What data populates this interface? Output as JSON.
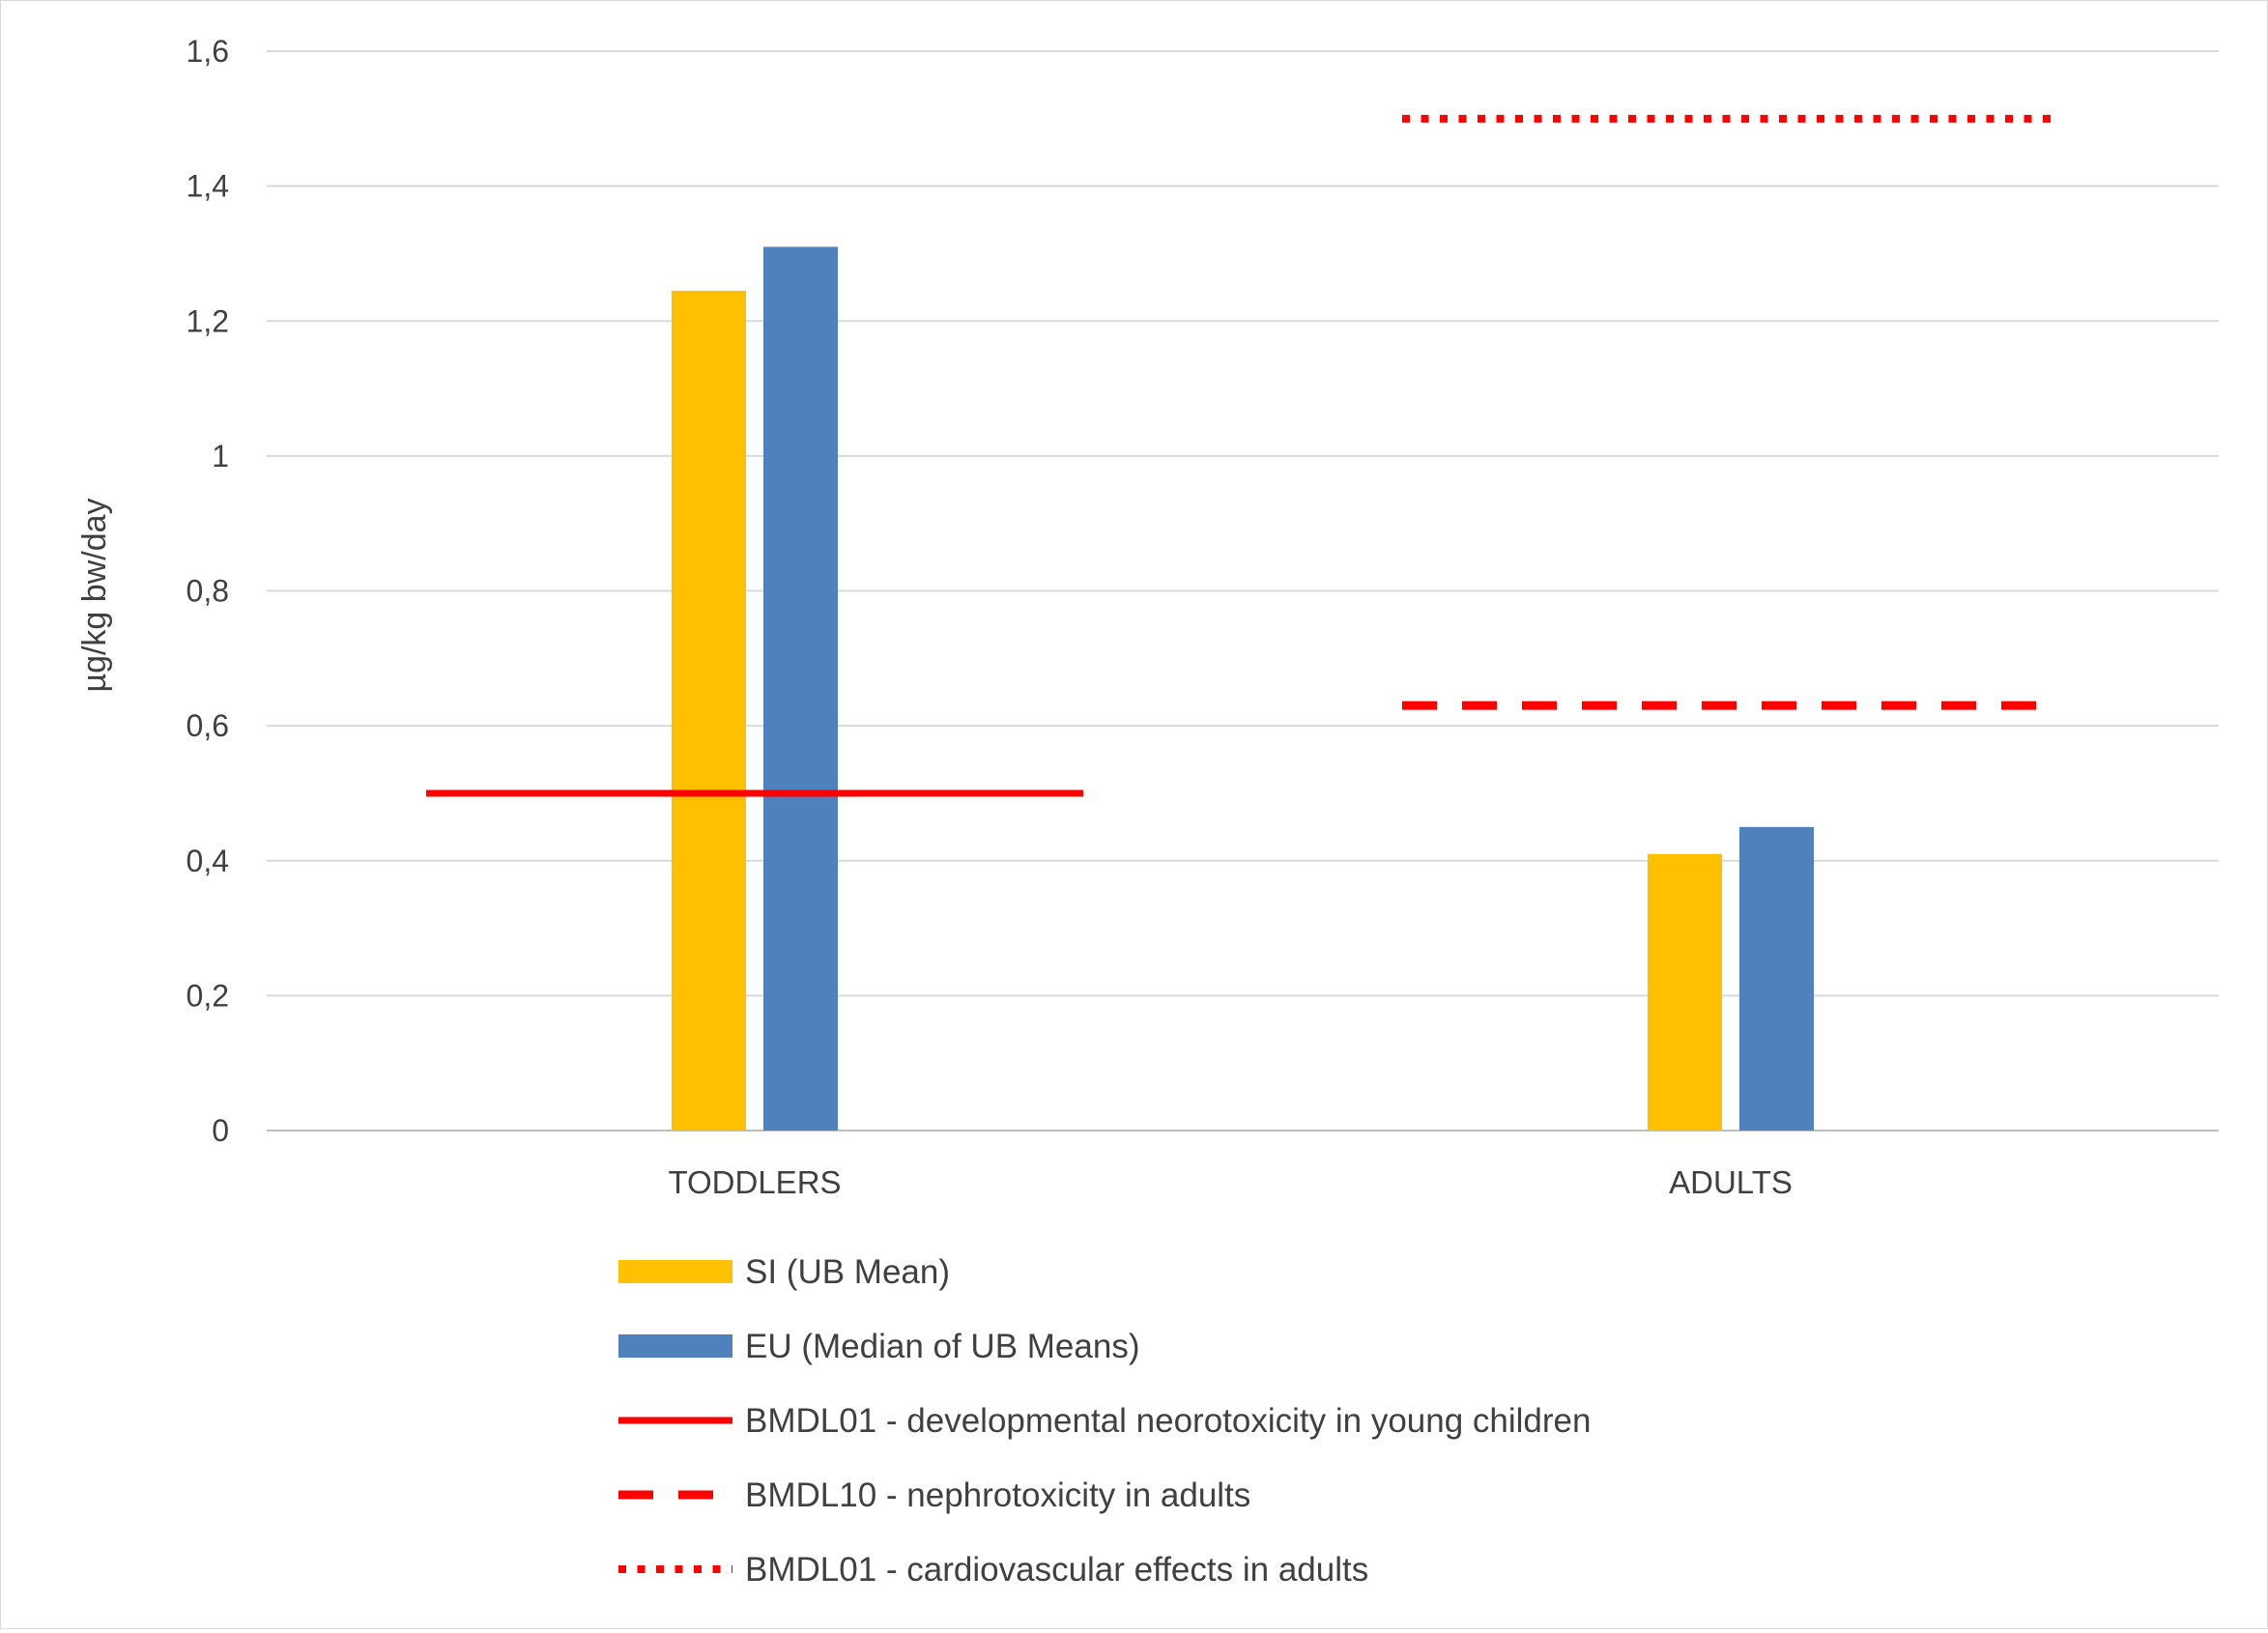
{
  "chart_data": {
    "type": "bar",
    "title": "",
    "xlabel": "",
    "ylabel": "µg/kg bw/day",
    "ylim": [
      0,
      1.6
    ],
    "yticks": [
      0,
      0.2,
      0.4,
      0.6,
      0.8,
      1.0,
      1.2,
      1.4,
      1.6
    ],
    "ytick_labels": [
      "0",
      "0,2",
      "0,4",
      "0,6",
      "0,8",
      "1",
      "1,2",
      "1,4",
      "1,6"
    ],
    "grid": true,
    "legend_position": "bottom",
    "categories": [
      "TODDLERS",
      "ADULTS"
    ],
    "series": [
      {
        "name": "SI (UB Mean)",
        "color": "#FFC000",
        "values": [
          1.245,
          0.41
        ]
      },
      {
        "name": "EU (Median of UB Means)",
        "color": "#4F81BD",
        "values": [
          1.31,
          0.45
        ]
      }
    ],
    "reference_lines": [
      {
        "name": "BMDL01 - developmental neorotoxicity in young children",
        "value": 0.5,
        "category": "TODDLERS",
        "style": "solid",
        "color": "#FF0000"
      },
      {
        "name": "BMDL10 - nephrotoxicity in adults",
        "value": 0.63,
        "category": "ADULTS",
        "style": "dashed",
        "color": "#FF0000"
      },
      {
        "name": "BMDL01 - cardiovascular effects in adults",
        "value": 1.5,
        "category": "ADULTS",
        "style": "dotted",
        "color": "#FF0000"
      }
    ]
  }
}
